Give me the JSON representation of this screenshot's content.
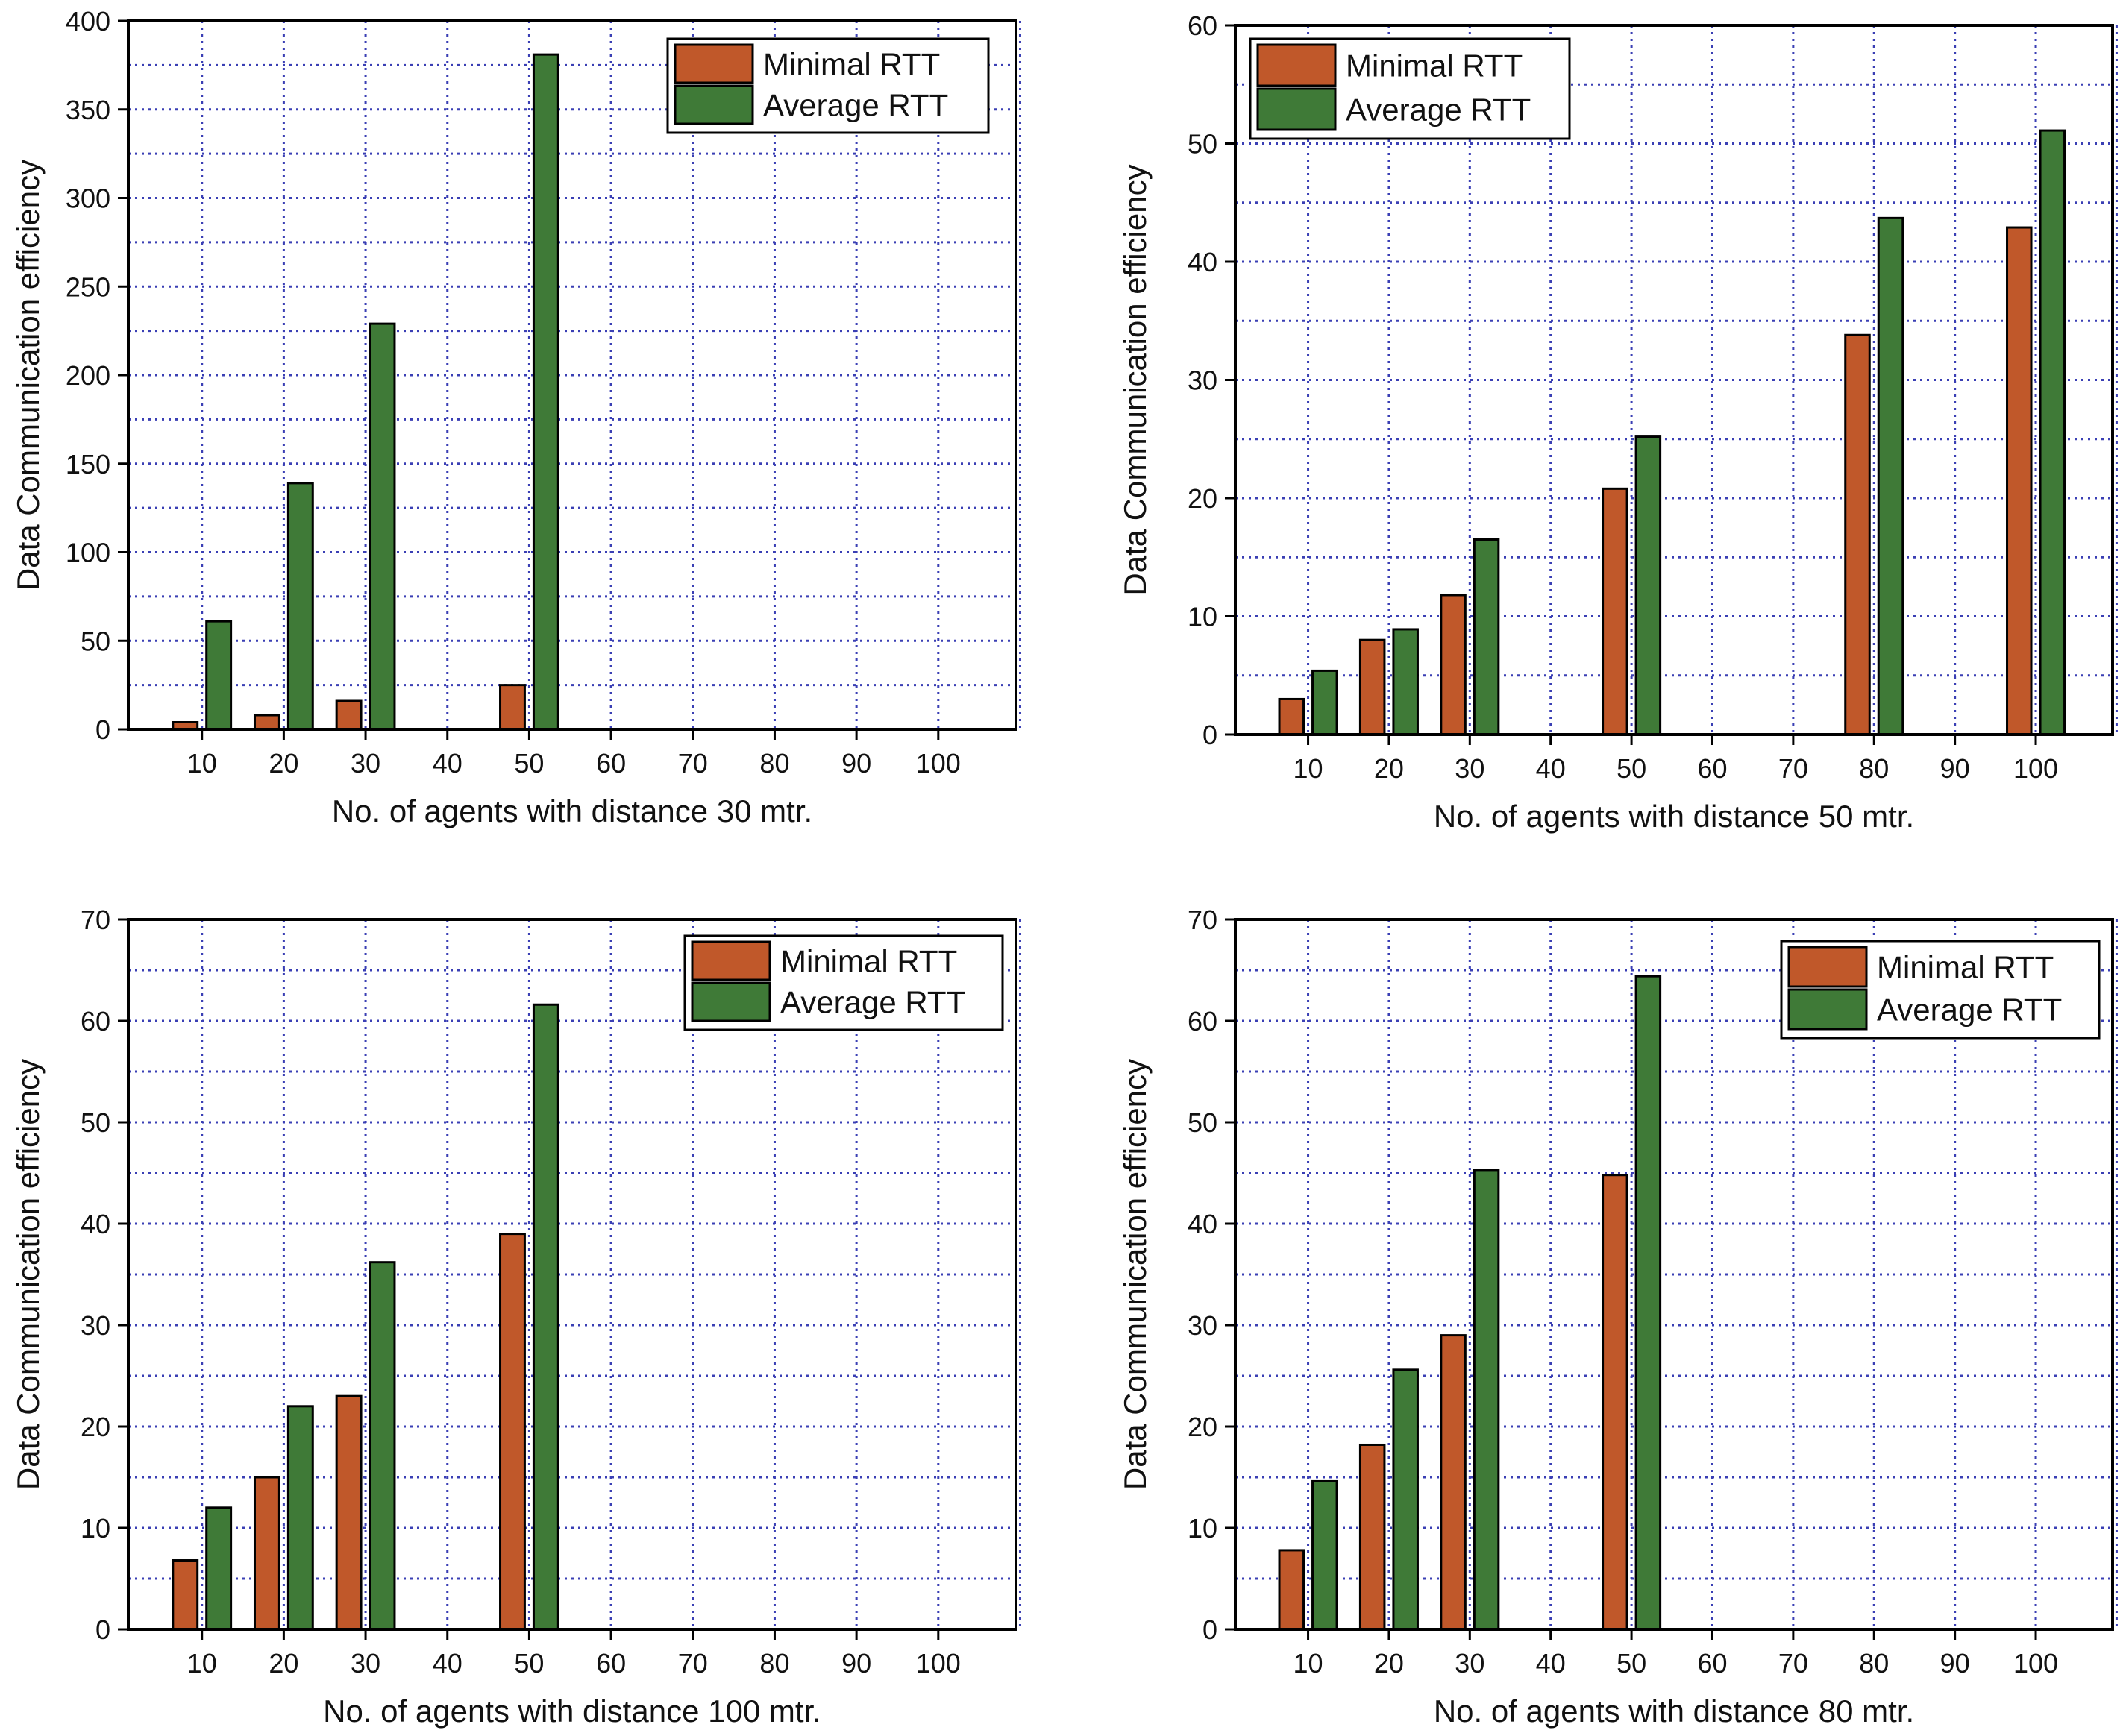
{
  "colors": {
    "minimal": "#c0582a",
    "average": "#3f7a37",
    "grid": "#3a3fb4",
    "axis": "#000000",
    "text": "#111111"
  },
  "chart_data": [
    {
      "type": "bar",
      "id": "panel-30m",
      "xlabel": "No. of agents with distance 30 mtr.",
      "ylabel": "Data Communication efficiency",
      "categories": [
        "10",
        "20",
        "30",
        "40",
        "50",
        "60",
        "70",
        "80",
        "90",
        "100"
      ],
      "ylim": [
        0,
        400
      ],
      "yticks": [
        0,
        50,
        100,
        150,
        200,
        250,
        300,
        350,
        400
      ],
      "grid": true,
      "legend_position": "top-right",
      "series": [
        {
          "name": "Minimal RTT",
          "color_key": "minimal",
          "values": [
            4,
            8,
            16,
            null,
            25,
            null,
            null,
            null,
            null,
            null
          ]
        },
        {
          "name": "Average RTT",
          "color_key": "average",
          "values": [
            61,
            139,
            229,
            null,
            381,
            null,
            null,
            null,
            null,
            null
          ]
        }
      ]
    },
    {
      "type": "bar",
      "id": "panel-50m",
      "xlabel": "No. of agents with distance 50 mtr.",
      "ylabel": "Data Communication efficiency",
      "categories": [
        "10",
        "20",
        "30",
        "40",
        "50",
        "60",
        "70",
        "80",
        "90",
        "100"
      ],
      "ylim": [
        0,
        60
      ],
      "yticks": [
        0,
        10,
        20,
        30,
        40,
        50,
        60
      ],
      "grid": true,
      "legend_position": "top-left",
      "series": [
        {
          "name": "Minimal RTT",
          "color_key": "minimal",
          "values": [
            3,
            8,
            11.8,
            null,
            20.8,
            null,
            null,
            33.8,
            null,
            42.9
          ]
        },
        {
          "name": "Average RTT",
          "color_key": "average",
          "values": [
            5.4,
            8.9,
            16.5,
            null,
            25.2,
            null,
            null,
            43.7,
            null,
            51.1
          ]
        }
      ]
    },
    {
      "type": "bar",
      "id": "panel-100m",
      "xlabel": "No. of agents with distance 100 mtr.",
      "ylabel": "Data Communication efficiency",
      "categories": [
        "10",
        "20",
        "30",
        "40",
        "50",
        "60",
        "70",
        "80",
        "90",
        "100"
      ],
      "ylim": [
        0,
        70
      ],
      "yticks": [
        0,
        10,
        20,
        30,
        40,
        50,
        60,
        70
      ],
      "grid": true,
      "legend_position": "top-right",
      "series": [
        {
          "name": "Minimal RTT",
          "color_key": "minimal",
          "values": [
            6.8,
            15,
            23,
            null,
            39,
            null,
            null,
            null,
            null,
            null
          ]
        },
        {
          "name": "Average RTT",
          "color_key": "average",
          "values": [
            12,
            22,
            36.2,
            null,
            61.6,
            null,
            null,
            null,
            null,
            null
          ]
        }
      ]
    },
    {
      "type": "bar",
      "id": "panel-80m",
      "xlabel": "No. of agents with distance 80 mtr.",
      "ylabel": "Data Communication efficiency",
      "categories": [
        "10",
        "20",
        "30",
        "40",
        "50",
        "60",
        "70",
        "80",
        "90",
        "100"
      ],
      "ylim": [
        0,
        70
      ],
      "yticks": [
        0,
        10,
        20,
        30,
        40,
        50,
        60,
        70
      ],
      "grid": true,
      "legend_position": "top-right",
      "series": [
        {
          "name": "Minimal RTT",
          "color_key": "minimal",
          "values": [
            7.8,
            18.2,
            29,
            null,
            44.8,
            null,
            null,
            null,
            null,
            null
          ]
        },
        {
          "name": "Average RTT",
          "color_key": "average",
          "values": [
            14.6,
            25.6,
            45.3,
            null,
            64.4,
            null,
            null,
            null,
            null,
            null
          ]
        }
      ]
    }
  ]
}
